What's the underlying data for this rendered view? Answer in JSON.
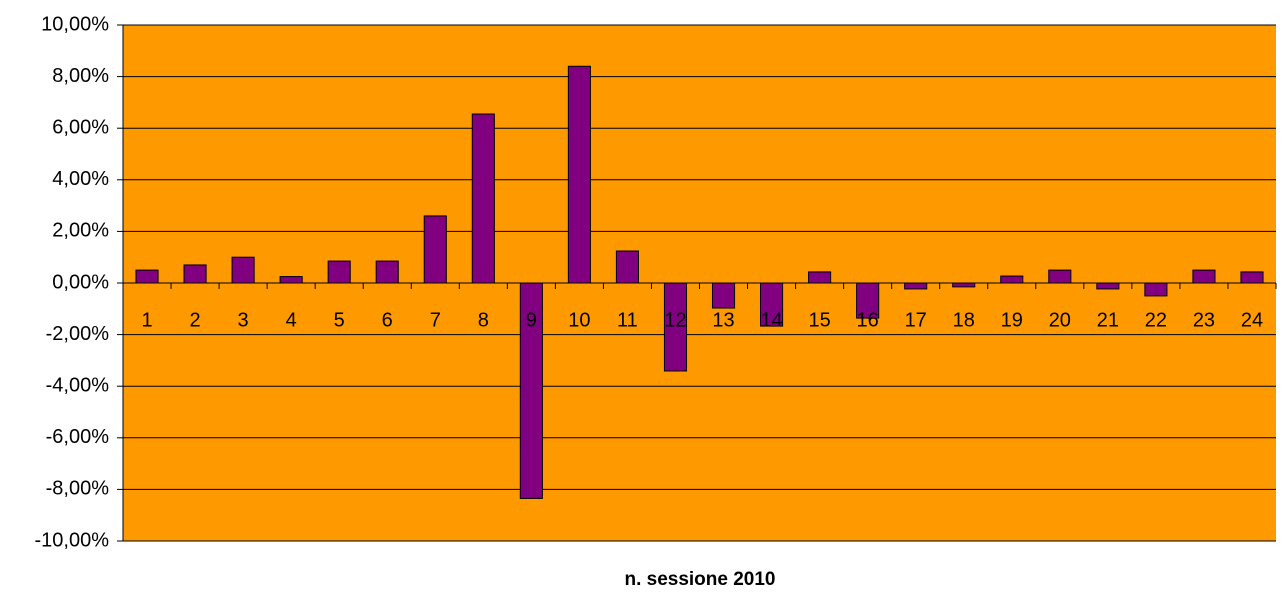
{
  "chart_data": {
    "type": "bar",
    "x_label": "n. sessione 2010",
    "categories": [
      "1",
      "2",
      "3",
      "4",
      "5",
      "6",
      "7",
      "8",
      "9",
      "10",
      "11",
      "12",
      "13",
      "14",
      "15",
      "16",
      "17",
      "18",
      "19",
      "20",
      "21",
      "22",
      "23",
      "24"
    ],
    "values": [
      0.5,
      0.7,
      1.0,
      0.25,
      0.85,
      0.85,
      2.6,
      6.55,
      -8.35,
      8.4,
      1.24,
      -3.41,
      -0.97,
      -1.67,
      0.43,
      -1.36,
      -0.23,
      -0.15,
      0.27,
      0.5,
      -0.23,
      -0.5,
      0.5,
      0.43
    ],
    "color": "#800080",
    "background": "#ff9900",
    "ylim": [
      -10,
      10
    ],
    "yticks": [
      {
        "value": -10,
        "label": "-10,00%"
      },
      {
        "value": -8,
        "label": "-8,00%"
      },
      {
        "value": -6,
        "label": "-6,00%"
      },
      {
        "value": -4,
        "label": "-4,00%"
      },
      {
        "value": -2,
        "label": "-2,00%"
      },
      {
        "value": 0,
        "label": "0,00%"
      },
      {
        "value": 2,
        "label": "2,00%"
      },
      {
        "value": 4,
        "label": "4,00%"
      },
      {
        "value": 6,
        "label": "6,00%"
      },
      {
        "value": 8,
        "label": "8,00%"
      },
      {
        "value": 10,
        "label": "10,00%"
      }
    ],
    "grid": true
  }
}
